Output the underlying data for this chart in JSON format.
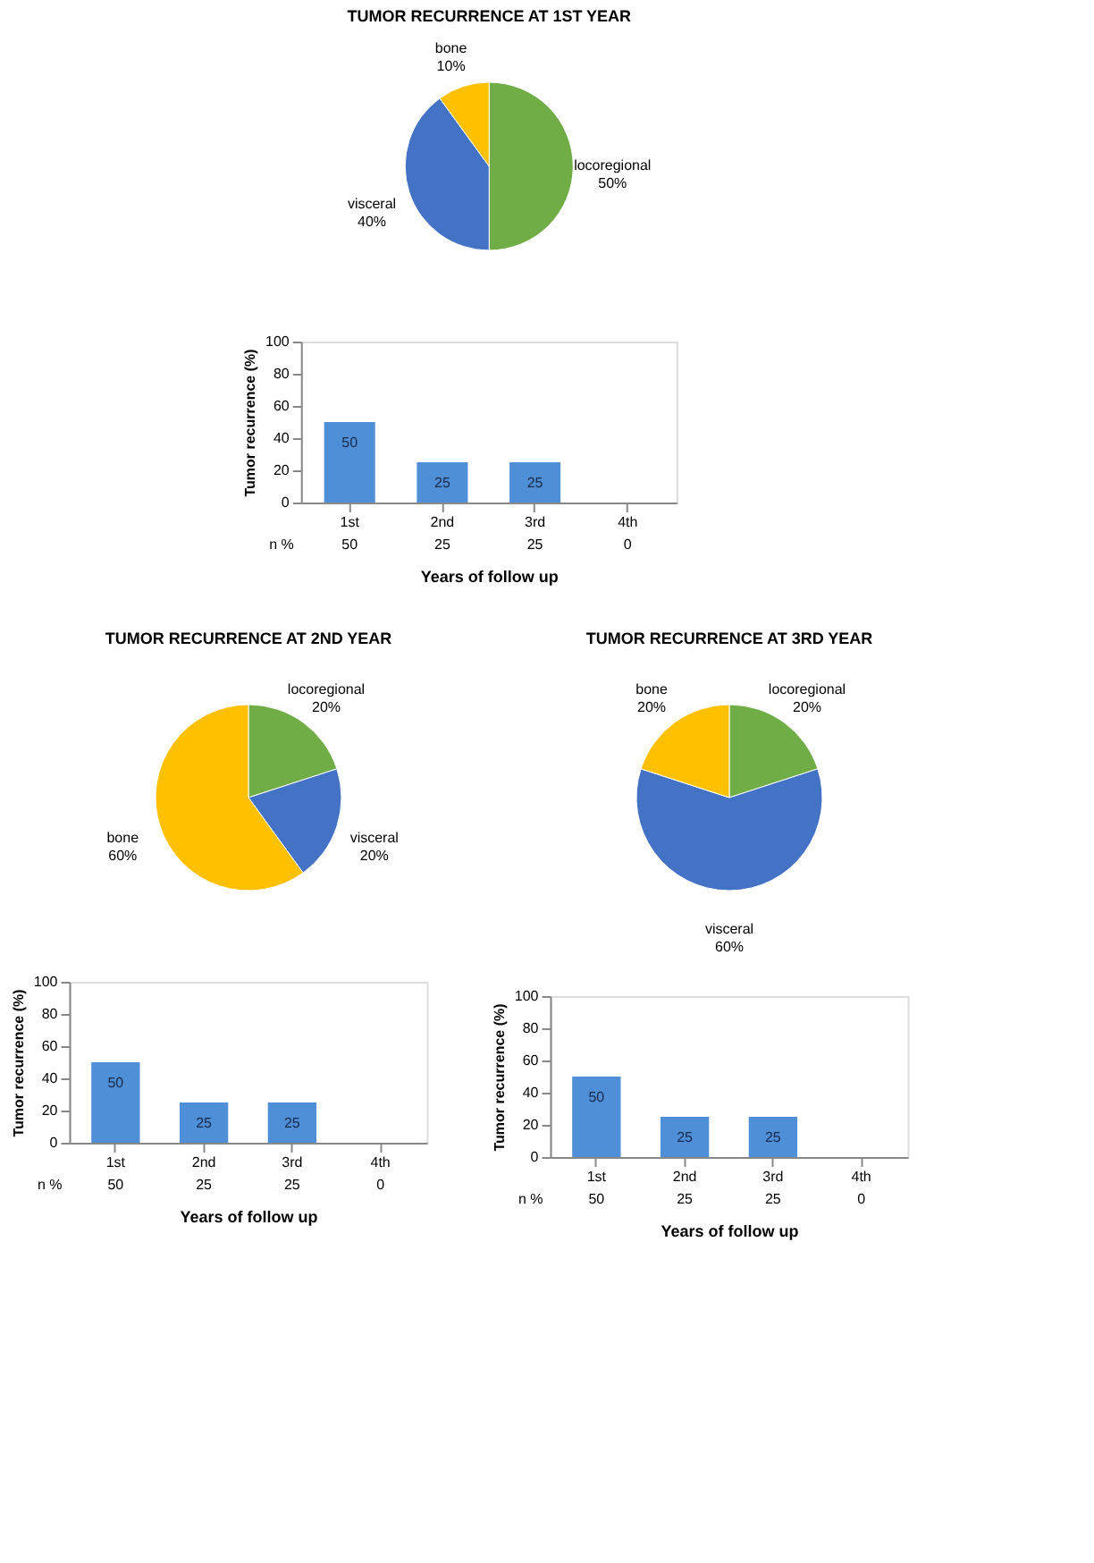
{
  "chart_data": [
    {
      "type": "pie",
      "title": "TUMOR RECURRENCE AT 1ST YEAR",
      "categories": [
        "locoregional",
        "visceral",
        "bone"
      ],
      "values": [
        50,
        40,
        10
      ],
      "value_labels": [
        "50%",
        "40%",
        "10%"
      ],
      "colors": [
        "#70ad47",
        "#4472c4",
        "#ffc000"
      ],
      "legend": false
    },
    {
      "type": "bar",
      "categories": [
        "1st",
        "2nd",
        "3rd",
        "4th"
      ],
      "values": [
        50,
        25,
        25,
        0
      ],
      "value_labels": [
        "50",
        "25",
        "25",
        null
      ],
      "color": "#4f8fd8",
      "ylim": [
        0,
        100
      ],
      "yticks": [
        0,
        20,
        40,
        60,
        80,
        100
      ],
      "ylabel": "Tumor recurrence (%)",
      "xlabel": "Years of follow up",
      "annotations": [
        "n %",
        "50",
        "25",
        "25",
        "0"
      ],
      "grid": false
    },
    {
      "type": "pie",
      "title": "TUMOR RECURRENCE AT 2ND YEAR",
      "categories": [
        "locoregional",
        "visceral",
        "bone"
      ],
      "values": [
        20,
        20,
        60
      ],
      "value_labels": [
        "20%",
        "20%",
        "60%"
      ],
      "colors": [
        "#70ad47",
        "#4472c4",
        "#ffc000"
      ],
      "legend": false
    },
    {
      "type": "bar",
      "categories": [
        "1st",
        "2nd",
        "3rd",
        "4th"
      ],
      "values": [
        50,
        25,
        25,
        0
      ],
      "value_labels": [
        "50",
        "25",
        "25",
        null
      ],
      "color": "#4f8fd8",
      "ylim": [
        0,
        100
      ],
      "yticks": [
        0,
        20,
        40,
        60,
        80,
        100
      ],
      "ylabel": "Tumor recurrence (%)",
      "xlabel": "Years of follow up",
      "annotations": [
        "n %",
        "50",
        "25",
        "25",
        "0"
      ],
      "grid": false
    },
    {
      "type": "pie",
      "title": "TUMOR RECURRENCE AT 3RD YEAR",
      "categories": [
        "locoregional",
        "visceral",
        "bone"
      ],
      "values": [
        20,
        60,
        20
      ],
      "value_labels": [
        "20%",
        "60%",
        "20%"
      ],
      "colors": [
        "#70ad47",
        "#4472c4",
        "#ffc000"
      ],
      "legend": false
    },
    {
      "type": "bar",
      "categories": [
        "1st",
        "2nd",
        "3rd",
        "4th"
      ],
      "values": [
        50,
        25,
        25,
        0
      ],
      "value_labels": [
        "50",
        "25",
        "25",
        null
      ],
      "color": "#4f8fd8",
      "ylim": [
        0,
        100
      ],
      "yticks": [
        0,
        20,
        40,
        60,
        80,
        100
      ],
      "ylabel": "Tumor recurrence (%)",
      "xlabel": "Years of follow up",
      "annotations": [
        "n %",
        "50",
        "25",
        "25",
        "0"
      ],
      "grid": false
    }
  ]
}
